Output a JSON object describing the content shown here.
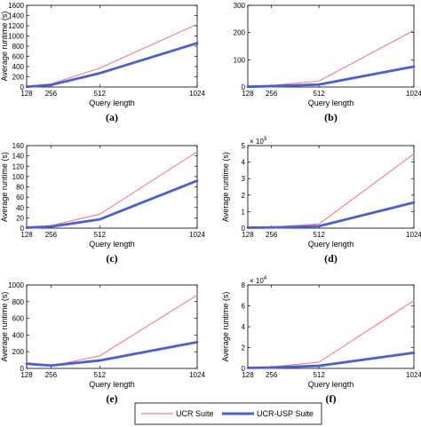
{
  "chart_data": [
    {
      "type": "line",
      "panel_label": "(a)",
      "xlabel": "Query length",
      "ylabel": "Average runtime (s)",
      "exponent_label": "",
      "x": [
        128,
        256,
        512,
        1024
      ],
      "xlim": [
        128,
        1024
      ],
      "ylim": [
        0,
        1600
      ],
      "yticks": [
        0,
        200,
        400,
        600,
        800,
        1000,
        1200,
        1400,
        1600
      ],
      "series": [
        {
          "name": "UCR Suite",
          "values": [
            10,
            60,
            370,
            1230
          ]
        },
        {
          "name": "UCR-USP Suite",
          "values": [
            5,
            40,
            270,
            860
          ]
        }
      ]
    },
    {
      "type": "line",
      "panel_label": "(b)",
      "xlabel": "Query length",
      "ylabel": "",
      "exponent_label": "",
      "x": [
        128,
        256,
        512,
        1024
      ],
      "xlim": [
        128,
        1024
      ],
      "ylim": [
        0,
        300
      ],
      "yticks": [
        0,
        100,
        200,
        300
      ],
      "series": [
        {
          "name": "UCR Suite",
          "values": [
            3,
            6,
            22,
            208
          ]
        },
        {
          "name": "UCR-USP Suite",
          "values": [
            1,
            3,
            9,
            75
          ]
        }
      ]
    },
    {
      "type": "line",
      "panel_label": "(c)",
      "xlabel": "Query length",
      "ylabel": "Average runtime (s)",
      "exponent_label": "",
      "x": [
        128,
        256,
        512,
        1024
      ],
      "xlim": [
        128,
        1024
      ],
      "ylim": [
        0,
        160
      ],
      "yticks": [
        0,
        20,
        40,
        60,
        80,
        100,
        120,
        140,
        160
      ],
      "series": [
        {
          "name": "UCR Suite",
          "values": [
            2,
            5,
            27,
            148
          ]
        },
        {
          "name": "UCR-USP Suite",
          "values": [
            1,
            3,
            17,
            92
          ]
        }
      ]
    },
    {
      "type": "line",
      "panel_label": "(d)",
      "xlabel": "Query length",
      "ylabel": "Average runtime (s)",
      "exponent_label": "× 10",
      "exponent_power": "3",
      "x": [
        128,
        256,
        512,
        1024
      ],
      "xlim": [
        128,
        1024
      ],
      "ylim": [
        0,
        5
      ],
      "yticks": [
        0,
        1,
        2,
        3,
        4,
        5
      ],
      "series": [
        {
          "name": "UCR Suite",
          "values": [
            0.05,
            0.06,
            0.25,
            4.5
          ]
        },
        {
          "name": "UCR-USP Suite",
          "values": [
            0.03,
            0.04,
            0.12,
            1.55
          ]
        }
      ]
    },
    {
      "type": "line",
      "panel_label": "(e)",
      "xlabel": "Query length",
      "ylabel": "Average runtime (s)",
      "exponent_label": "",
      "x": [
        128,
        256,
        512,
        1024
      ],
      "xlim": [
        128,
        1024
      ],
      "ylim": [
        0,
        1000
      ],
      "yticks": [
        0,
        200,
        400,
        600,
        800,
        1000
      ],
      "series": [
        {
          "name": "UCR Suite",
          "values": [
            70,
            30,
            150,
            880
          ]
        },
        {
          "name": "UCR-USP Suite",
          "values": [
            55,
            35,
            95,
            315
          ]
        }
      ]
    },
    {
      "type": "line",
      "panel_label": "(f)",
      "xlabel": "Query length",
      "ylabel": "Average runtime (s)",
      "exponent_label": "× 10",
      "exponent_power": "4",
      "x": [
        128,
        256,
        512,
        1024
      ],
      "xlim": [
        128,
        1024
      ],
      "ylim": [
        0,
        8
      ],
      "yticks": [
        0,
        2,
        4,
        6,
        8
      ],
      "series": [
        {
          "name": "UCR Suite",
          "values": [
            0.1,
            0.15,
            0.6,
            6.5
          ]
        },
        {
          "name": "UCR-USP Suite",
          "values": [
            0.05,
            0.08,
            0.25,
            1.5
          ]
        }
      ]
    }
  ],
  "colors": {
    "ucr_suite": "#f08080",
    "ucr_usp_suite": "#4a5fd6",
    "axis": "#000000"
  },
  "legend": {
    "items": [
      {
        "label": "UCR Suite"
      },
      {
        "label": "UCR-USP Suite"
      }
    ]
  }
}
